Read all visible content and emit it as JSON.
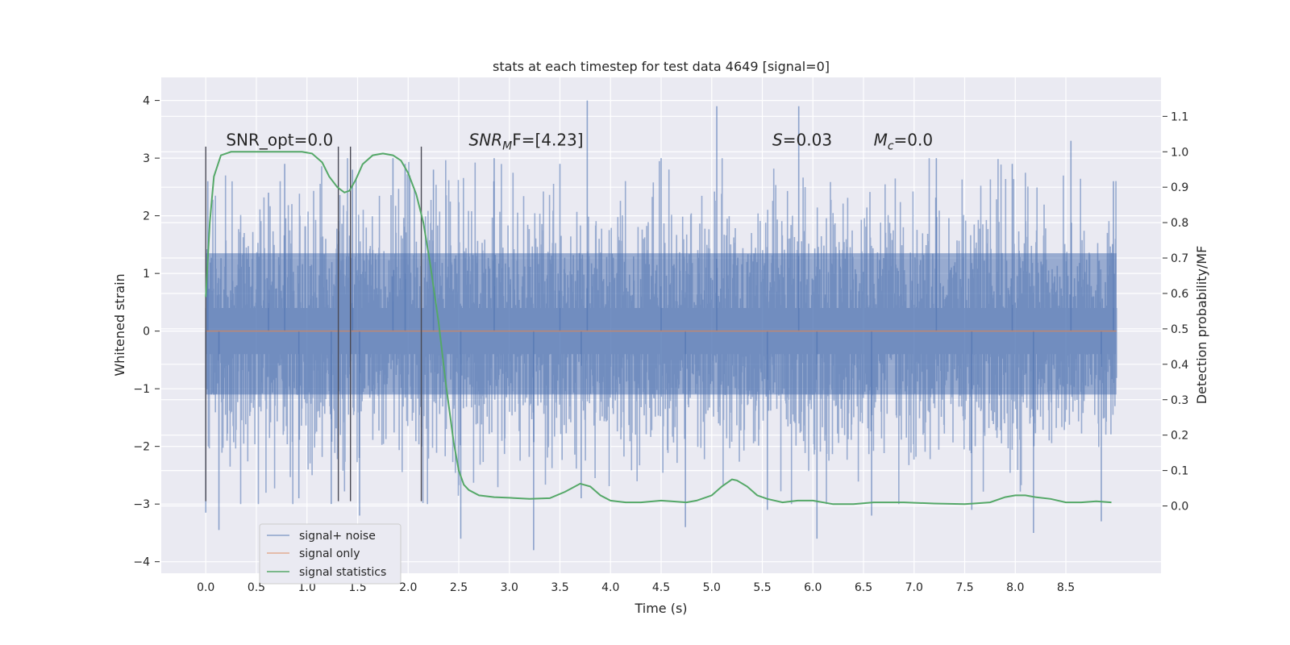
{
  "chart_data": {
    "type": "line",
    "title": "stats at each timestep for test data 4649 [signal=0]",
    "xlabel": "Time (s)",
    "ylabel": "Whitened strain",
    "y2label": "Detection probability/MF",
    "xlim": [
      -0.44,
      9.44
    ],
    "ylim": [
      -4.2,
      4.4
    ],
    "y2lim": [
      -0.19,
      1.21
    ],
    "xticks": [
      0.0,
      0.5,
      1.0,
      1.5,
      2.0,
      2.5,
      3.0,
      3.5,
      4.0,
      4.5,
      5.0,
      5.5,
      6.0,
      6.5,
      7.0,
      7.5,
      8.0,
      8.5
    ],
    "xticklabels": [
      "0.0",
      "0.5",
      "1.0",
      "1.5",
      "2.0",
      "2.5",
      "3.0",
      "3.5",
      "4.0",
      "4.5",
      "5.0",
      "5.5",
      "6.0",
      "6.5",
      "7.0",
      "7.5",
      "8.0",
      "8.5"
    ],
    "yticks": [
      4,
      3,
      2,
      1,
      0,
      -1,
      -2,
      -3,
      -4
    ],
    "yticklabels": [
      "4",
      "3",
      "2",
      "1",
      "0",
      "−1",
      "−2",
      "−3",
      "−4"
    ],
    "y2ticks": [
      1.1,
      1.0,
      0.9,
      0.8,
      0.7,
      0.6,
      0.5,
      0.4,
      0.3,
      0.2,
      0.1,
      0.0
    ],
    "y2ticklabels": [
      "1.1",
      "1.0",
      "0.9",
      "0.8",
      "0.7",
      "0.6",
      "0.5",
      "0.4",
      "0.3",
      "0.2",
      "0.1",
      "0.0"
    ],
    "grid": true,
    "legend": {
      "placement": "lower-left",
      "entries": [
        {
          "label": "signal+ noise",
          "color": "#4c72b0"
        },
        {
          "label": "signal only",
          "color": "#dd8452"
        },
        {
          "label": "signal statistics",
          "color": "#55a868"
        }
      ]
    },
    "annotations": [
      {
        "text": "SNR_opt=0.0",
        "x": 0.2,
        "y": 3.3
      },
      {
        "text_main": "SNR",
        "text_sub": "M",
        "text_rest": "F=[4.23]",
        "x": 2.6,
        "y": 3.3
      },
      {
        "text_main": "S",
        "text_rest": "=0.03",
        "x": 5.6,
        "y": 3.3
      },
      {
        "text_main": "M",
        "text_sub": "c",
        "text_rest": "=0.0",
        "x": 6.6,
        "y": 3.3
      }
    ],
    "vertical_markers": [
      {
        "x": 0.0,
        "y_range": [
          -2.95,
          3.2
        ]
      },
      {
        "x": 1.31,
        "y_range": [
          -2.95,
          3.2
        ]
      },
      {
        "x": 1.43,
        "y_range": [
          -2.95,
          3.2
        ]
      },
      {
        "x": 2.13,
        "y_range": [
          -2.95,
          3.2
        ]
      }
    ],
    "series": [
      {
        "name": "signal+ noise",
        "color": "#4c72b0",
        "x_range": [
          0.0,
          9.0
        ],
        "band": [
          -1.1,
          1.35
        ],
        "spikes": [
          {
            "x": 0.0,
            "y": -3.15
          },
          {
            "x": 0.02,
            "y": 2.6
          },
          {
            "x": 0.13,
            "y": -3.45
          },
          {
            "x": 0.62,
            "y": 2.4
          },
          {
            "x": 0.78,
            "y": 2.9
          },
          {
            "x": 0.92,
            "y": -2.9
          },
          {
            "x": 1.24,
            "y": -3.0
          },
          {
            "x": 1.45,
            "y": 2.8
          },
          {
            "x": 1.52,
            "y": -3.2
          },
          {
            "x": 1.85,
            "y": 3.0
          },
          {
            "x": 1.97,
            "y": 2.9
          },
          {
            "x": 2.25,
            "y": 2.8
          },
          {
            "x": 2.52,
            "y": -3.6
          },
          {
            "x": 2.85,
            "y": 3.0
          },
          {
            "x": 3.24,
            "y": -3.8
          },
          {
            "x": 3.5,
            "y": 2.9
          },
          {
            "x": 3.77,
            "y": 4.0
          },
          {
            "x": 3.71,
            "y": -2.9
          },
          {
            "x": 4.5,
            "y": 3.0
          },
          {
            "x": 4.74,
            "y": -3.4
          },
          {
            "x": 5.05,
            "y": 3.9
          },
          {
            "x": 5.55,
            "y": -3.1
          },
          {
            "x": 5.86,
            "y": 3.9
          },
          {
            "x": 6.04,
            "y": -3.6
          },
          {
            "x": 6.58,
            "y": -3.2
          },
          {
            "x": 7.22,
            "y": 3.0
          },
          {
            "x": 7.57,
            "y": -3.1
          },
          {
            "x": 7.97,
            "y": 2.9
          },
          {
            "x": 8.18,
            "y": -3.5
          },
          {
            "x": 8.55,
            "y": 3.3
          },
          {
            "x": 8.85,
            "y": -3.3
          },
          {
            "x": 8.97,
            "y": 2.6
          }
        ]
      },
      {
        "name": "signal only",
        "color": "#dd8452",
        "x": [
          0.0,
          9.0
        ],
        "y": [
          0.0,
          0.0
        ]
      },
      {
        "name": "signal statistics",
        "color": "#55a868",
        "axis": "right",
        "x": [
          0.0,
          0.04,
          0.08,
          0.15,
          0.25,
          0.4,
          0.6,
          0.8,
          0.95,
          1.05,
          1.15,
          1.22,
          1.3,
          1.37,
          1.42,
          1.48,
          1.55,
          1.65,
          1.75,
          1.85,
          1.93,
          2.0,
          2.08,
          2.15,
          2.22,
          2.3,
          2.37,
          2.45,
          2.5,
          2.55,
          2.6,
          2.7,
          2.85,
          3.0,
          3.2,
          3.4,
          3.55,
          3.7,
          3.8,
          3.9,
          4.0,
          4.15,
          4.3,
          4.5,
          4.6,
          4.75,
          4.85,
          5.0,
          5.1,
          5.2,
          5.25,
          5.35,
          5.45,
          5.55,
          5.7,
          5.85,
          6.0,
          6.2,
          6.4,
          6.6,
          6.9,
          7.2,
          7.5,
          7.75,
          7.9,
          8.0,
          8.1,
          8.2,
          8.35,
          8.5,
          8.65,
          8.8,
          8.95
        ],
        "y": [
          0.59,
          0.8,
          0.93,
          0.99,
          1.0,
          1.0,
          1.0,
          1.0,
          1.0,
          0.995,
          0.97,
          0.93,
          0.9,
          0.885,
          0.89,
          0.92,
          0.965,
          0.99,
          0.995,
          0.99,
          0.975,
          0.94,
          0.88,
          0.8,
          0.68,
          0.52,
          0.35,
          0.18,
          0.1,
          0.06,
          0.045,
          0.03,
          0.025,
          0.023,
          0.02,
          0.022,
          0.04,
          0.063,
          0.055,
          0.03,
          0.015,
          0.01,
          0.01,
          0.015,
          0.013,
          0.01,
          0.015,
          0.03,
          0.055,
          0.075,
          0.072,
          0.055,
          0.03,
          0.02,
          0.01,
          0.015,
          0.015,
          0.005,
          0.005,
          0.01,
          0.01,
          0.007,
          0.005,
          0.01,
          0.025,
          0.03,
          0.03,
          0.025,
          0.02,
          0.01,
          0.01,
          0.013,
          0.01
        ]
      }
    ]
  }
}
